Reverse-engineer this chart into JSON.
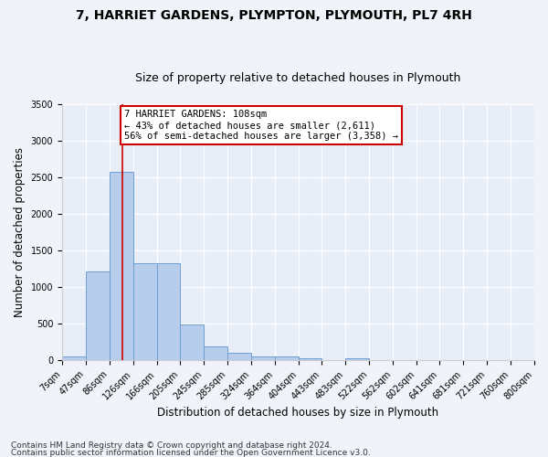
{
  "title1": "7, HARRIET GARDENS, PLYMPTON, PLYMOUTH, PL7 4RH",
  "title2": "Size of property relative to detached houses in Plymouth",
  "xlabel": "Distribution of detached houses by size in Plymouth",
  "ylabel": "Number of detached properties",
  "bin_edges": [
    7,
    47,
    86,
    126,
    166,
    205,
    245,
    285,
    324,
    364,
    404,
    443,
    483,
    522,
    562,
    602,
    641,
    681,
    721,
    760,
    800
  ],
  "bar_heights": [
    50,
    1220,
    2580,
    1330,
    1330,
    490,
    190,
    100,
    50,
    50,
    30,
    0,
    30,
    0,
    0,
    0,
    0,
    0,
    0,
    0
  ],
  "bar_color": "#b8cceb",
  "bar_edgecolor": "#6b9fd4",
  "bar_linewidth": 0.7,
  "vline_x": 108,
  "vline_color": "#cc0000",
  "vline_linewidth": 1.2,
  "annotation_line1": "7 HARRIET GARDENS: 108sqm",
  "annotation_line2": "← 43% of detached houses are smaller (2,611)",
  "annotation_line3": "56% of semi-detached houses are larger (3,358) →",
  "annotation_box_color": "#cc0000",
  "annotation_bg": "#ffffff",
  "ylim": [
    0,
    3500
  ],
  "yticks": [
    0,
    500,
    1000,
    1500,
    2000,
    2500,
    3000,
    3500
  ],
  "bg_color": "#e8eef8",
  "fig_bg": "#f0f4fa",
  "grid_color": "#ffffff",
  "footer1": "Contains HM Land Registry data © Crown copyright and database right 2024.",
  "footer2": "Contains public sector information licensed under the Open Government Licence v3.0.",
  "title1_fontsize": 10,
  "title2_fontsize": 9,
  "xlabel_fontsize": 8.5,
  "ylabel_fontsize": 8.5,
  "tick_fontsize": 7,
  "annotation_fontsize": 7.5,
  "footer_fontsize": 6.5
}
